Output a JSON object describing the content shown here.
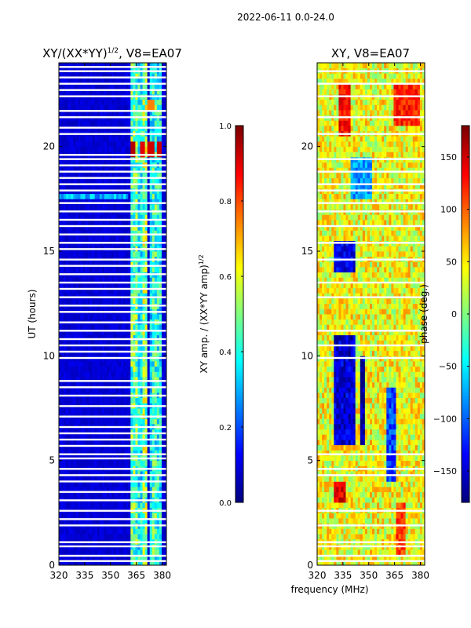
{
  "suptitle": "2022-06-11 0.0-24.0",
  "shared_xlabel": "frequency (MHz)",
  "chart_data": [
    {
      "type": "heatmap",
      "title_main": "XY/(XX*YY)",
      "title_exp": "1/2",
      "title_suffix": ", V8=EA07",
      "xlabel": "",
      "ylabel": "UT (hours)",
      "xlim": [
        320,
        382.5
      ],
      "ylim": [
        0,
        24
      ],
      "xticks": [
        320,
        335,
        350,
        365,
        380
      ],
      "yticks": [
        0,
        5,
        10,
        15,
        20
      ],
      "colorbar": {
        "label_main": "XY amp. / (XX*YY amp)",
        "label_exp": "1/2",
        "range": [
          0.0,
          1.0
        ],
        "ticks": [
          0.0,
          0.2,
          0.4,
          0.6,
          0.8,
          1.0
        ],
        "tick_labels": [
          "0.0",
          "0.2",
          "0.4",
          "0.6",
          "0.8",
          "1.0"
        ]
      },
      "colormap": "jet",
      "value_model": {
        "background": 0.06,
        "channel_bands": [
          {
            "center": 363.5,
            "width": 2.0,
            "value": 0.55
          },
          {
            "center": 367.0,
            "width": 1.4,
            "value": 0.45
          },
          {
            "center": 370.0,
            "width": 1.8,
            "value": 0.6
          },
          {
            "center": 373.5,
            "width": 1.2,
            "value": 0.4
          },
          {
            "center": 376.0,
            "width": 1.6,
            "value": 0.5
          },
          {
            "center": 379.0,
            "width": 1.4,
            "value": 0.45
          }
        ],
        "hot_spots": [
          {
            "freq": 363.5,
            "hour": 19.9,
            "value": 0.95
          },
          {
            "freq": 368.5,
            "hour": 19.9,
            "value": 0.9
          },
          {
            "freq": 373.5,
            "hour": 19.9,
            "value": 0.92
          },
          {
            "freq": 378.5,
            "hour": 19.9,
            "value": 0.93
          },
          {
            "freq": 373.5,
            "hour": 22.0,
            "value": 0.75
          }
        ],
        "bright_row": {
          "hour": 17.7,
          "value": 0.35
        }
      },
      "gaps_hours": [
        0.2,
        0.45,
        0.9,
        1.1,
        1.9,
        2.2,
        2.6,
        3.1,
        3.5,
        4.0,
        4.3,
        4.6,
        5.1,
        5.3,
        5.7,
        6.0,
        6.3,
        6.6,
        7.1,
        7.6,
        8.1,
        8.5,
        8.8,
        9.9,
        10.2,
        10.5,
        10.8,
        11.2,
        11.6,
        12.1,
        12.4,
        12.8,
        13.2,
        13.5,
        13.9,
        14.3,
        14.6,
        15.1,
        15.4,
        15.8,
        16.2,
        16.5,
        16.9,
        17.3,
        17.9,
        18.2,
        18.5,
        18.8,
        19.1,
        19.4,
        19.6,
        20.6,
        20.9,
        21.4,
        21.7,
        22.4,
        22.7,
        23.0,
        23.3,
        23.6,
        23.8
      ]
    },
    {
      "type": "heatmap",
      "title": "XY, V8=EA07",
      "xlabel": "frequency (MHz)",
      "ylabel": "",
      "xlim": [
        320,
        382.5
      ],
      "ylim": [
        0,
        24
      ],
      "xticks": [
        320,
        335,
        350,
        365,
        380
      ],
      "yticks": [
        0,
        5,
        10,
        15,
        20
      ],
      "colorbar": {
        "label": "phase (deg.)",
        "range": [
          -180,
          180
        ],
        "ticks": [
          -150,
          -100,
          -50,
          0,
          50,
          100,
          150
        ],
        "tick_labels": [
          "−150",
          "−100",
          "−50",
          "0",
          "50",
          "100",
          "150"
        ]
      },
      "colormap": "jet",
      "value_model": {
        "background": 40,
        "blue_regions": [
          {
            "freq_from": 330,
            "freq_to": 342,
            "hour_from": 5.8,
            "hour_to": 11.0,
            "value": -150
          },
          {
            "freq_from": 345,
            "freq_to": 348,
            "hour_from": 5.8,
            "hour_to": 10.0,
            "value": -170
          },
          {
            "freq_from": 360,
            "freq_to": 366,
            "hour_from": 4.0,
            "hour_to": 8.5,
            "value": -110
          },
          {
            "freq_from": 330,
            "freq_to": 342,
            "hour_from": 14.0,
            "hour_to": 15.5,
            "value": -140
          },
          {
            "freq_from": 340,
            "freq_to": 352,
            "hour_from": 17.5,
            "hour_to": 19.5,
            "value": -80
          }
        ],
        "red_regions": [
          {
            "freq_from": 332,
            "freq_to": 340,
            "hour_from": 20.5,
            "hour_to": 23.0,
            "value": 160
          },
          {
            "freq_from": 365,
            "freq_to": 380,
            "hour_from": 21.0,
            "hour_to": 23.0,
            "value": 150
          },
          {
            "freq_from": 330,
            "freq_to": 336,
            "hour_from": 3.0,
            "hour_to": 4.0,
            "value": 170
          },
          {
            "freq_from": 366,
            "freq_to": 372,
            "hour_from": 0.5,
            "hour_to": 3.0,
            "value": 140
          }
        ]
      },
      "gaps_hours": [
        0.2,
        0.45,
        0.9,
        1.1,
        1.9,
        2.6,
        4.3,
        4.6,
        5.3,
        9.9,
        10.5,
        11.2,
        12.8,
        13.5,
        14.6,
        15.4,
        16.2,
        16.9,
        17.3,
        17.9,
        18.2,
        18.8,
        19.4,
        20.6,
        21.4,
        22.4,
        23.0,
        23.6
      ]
    }
  ]
}
